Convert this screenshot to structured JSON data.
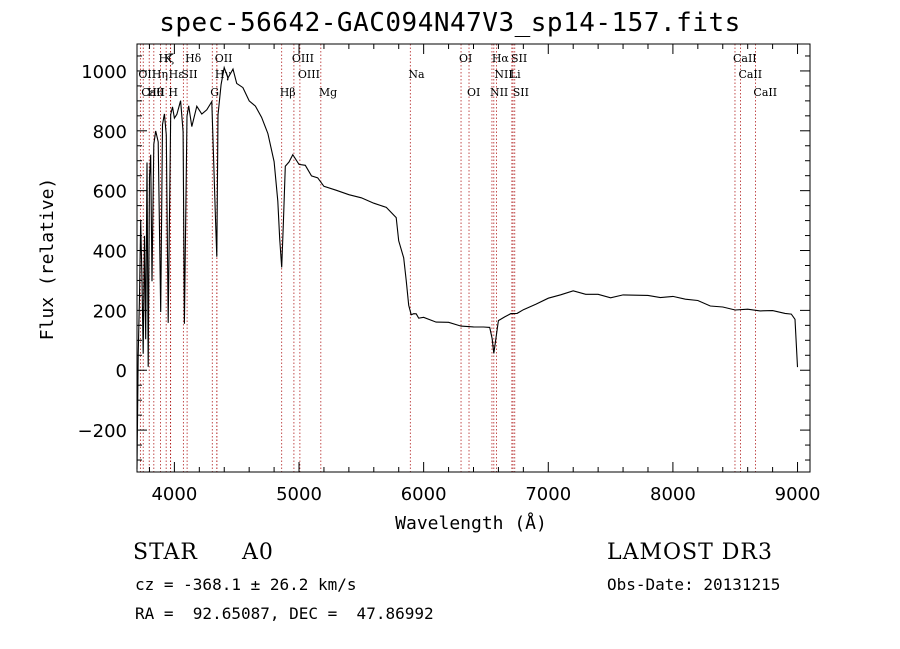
{
  "chart_data": {
    "type": "line",
    "title": "spec-56642-GAC094N47V3_sp14-157.fits",
    "xlabel": "Wavelength (Å)",
    "ylabel": "Flux (relative)",
    "xlim": [
      3700,
      9100
    ],
    "ylim": [
      -340,
      1090
    ],
    "x_ticks": [
      4000,
      5000,
      6000,
      7000,
      8000,
      9000
    ],
    "y_ticks": [
      -200,
      0,
      200,
      400,
      600,
      800,
      1000
    ],
    "series": [
      {
        "name": "spectrum",
        "x": [
          3700,
          3710,
          3720,
          3730,
          3740,
          3750,
          3760,
          3770,
          3780,
          3790,
          3800,
          3810,
          3820,
          3835,
          3850,
          3870,
          3890,
          3905,
          3920,
          3935,
          3950,
          3970,
          3985,
          4000,
          4020,
          4050,
          4070,
          4080,
          4101,
          4115,
          4140,
          4180,
          4220,
          4260,
          4300,
          4330,
          4340,
          4350,
          4375,
          4400,
          4430,
          4470,
          4500,
          4550,
          4600,
          4650,
          4700,
          4750,
          4800,
          4830,
          4845,
          4861,
          4875,
          4890,
          4920,
          4950,
          5000,
          5050,
          5100,
          5150,
          5200,
          5300,
          5400,
          5500,
          5600,
          5700,
          5780,
          5800,
          5840,
          5860,
          5880,
          5900,
          5920,
          5940,
          5960,
          6000,
          6100,
          6200,
          6300,
          6400,
          6480,
          6530,
          6550,
          6563,
          6575,
          6600,
          6650,
          6700,
          6750,
          6800,
          6900,
          7000,
          7100,
          7200,
          7300,
          7400,
          7500,
          7600,
          7700,
          7800,
          7900,
          8000,
          8100,
          8200,
          8300,
          8400,
          8500,
          8600,
          8700,
          8800,
          8900,
          8950,
          8980,
          9000
        ],
        "values": [
          -330,
          50,
          250,
          500,
          300,
          50,
          450,
          100,
          700,
          10,
          650,
          720,
          300,
          750,
          800,
          760,
          200,
          820,
          860,
          780,
          160,
          850,
          880,
          840,
          860,
          900,
          800,
          150,
          850,
          880,
          820,
          880,
          860,
          870,
          900,
          500,
          380,
          850,
          960,
          1010,
          980,
          1000,
          960,
          940,
          900,
          880,
          850,
          790,
          700,
          560,
          440,
          340,
          500,
          680,
          700,
          720,
          690,
          680,
          650,
          640,
          620,
          600,
          590,
          570,
          560,
          540,
          510,
          430,
          380,
          300,
          220,
          180,
          190,
          185,
          180,
          175,
          165,
          160,
          150,
          140,
          145,
          140,
          110,
          55,
          95,
          160,
          180,
          185,
          190,
          200,
          225,
          240,
          255,
          260,
          255,
          250,
          248,
          250,
          255,
          250,
          245,
          242,
          238,
          230,
          220,
          210,
          205,
          198,
          200,
          195,
          190,
          185,
          175,
          10
        ]
      }
    ],
    "lines": [
      {
        "name": "Hζ",
        "wavelength": 3889,
        "row": 1
      },
      {
        "name": "K",
        "wavelength": 3934,
        "row": 1
      },
      {
        "name": "Hδ",
        "wavelength": 4102,
        "row": 1
      },
      {
        "name": "OII",
        "wavelength": 4340,
        "row": 1
      },
      {
        "name": "OIII",
        "wavelength": 4959,
        "row": 1
      },
      {
        "name": "OI",
        "wavelength": 6300,
        "row": 1
      },
      {
        "name": "Hα",
        "wavelength": 6563,
        "row": 1
      },
      {
        "name": "SII",
        "wavelength": 6717,
        "row": 1
      },
      {
        "name": "CaII",
        "wavelength": 8498,
        "row": 1
      },
      {
        "name": "OII",
        "wavelength": 3727,
        "row": 2
      },
      {
        "name": "Hη",
        "wavelength": 3835,
        "row": 2
      },
      {
        "name": "Hε",
        "wavelength": 3970,
        "row": 2
      },
      {
        "name": "SII",
        "wavelength": 4072,
        "row": 2
      },
      {
        "name": "Hγ",
        "wavelength": 4341,
        "row": 2
      },
      {
        "name": "OIII",
        "wavelength": 5007,
        "row": 2
      },
      {
        "name": "Na",
        "wavelength": 5893,
        "row": 2
      },
      {
        "name": "NII",
        "wavelength": 6584,
        "row": 2
      },
      {
        "name": "Li",
        "wavelength": 6708,
        "row": 2
      },
      {
        "name": "CaII",
        "wavelength": 8542,
        "row": 2
      },
      {
        "name": "CaII",
        "wavelength": 3750,
        "row": 3
      },
      {
        "name": "Hθ",
        "wavelength": 3798,
        "row": 3
      },
      {
        "name": "H",
        "wavelength": 3968,
        "row": 3
      },
      {
        "name": "G",
        "wavelength": 4304,
        "row": 3
      },
      {
        "name": "Hβ",
        "wavelength": 4861,
        "row": 3
      },
      {
        "name": "Mg",
        "wavelength": 5175,
        "row": 3
      },
      {
        "name": "OI",
        "wavelength": 6364,
        "row": 3
      },
      {
        "name": "NII",
        "wavelength": 6548,
        "row": 3
      },
      {
        "name": "SII",
        "wavelength": 6731,
        "row": 3
      },
      {
        "name": "CaII",
        "wavelength": 8662,
        "row": 3
      }
    ]
  },
  "info": {
    "object_class": "STAR",
    "subclass": "A0",
    "redshift": "cz = -368.1 ± 26.2 km/s",
    "coordinates": "RA =  92.65087, DEC =  47.86992",
    "survey": "LAMOST DR3",
    "obs_date": "Obs-Date: 20131215"
  },
  "colors": {
    "spectrum": "#000000",
    "line_markers": "#b22222",
    "axes": "#000000"
  }
}
